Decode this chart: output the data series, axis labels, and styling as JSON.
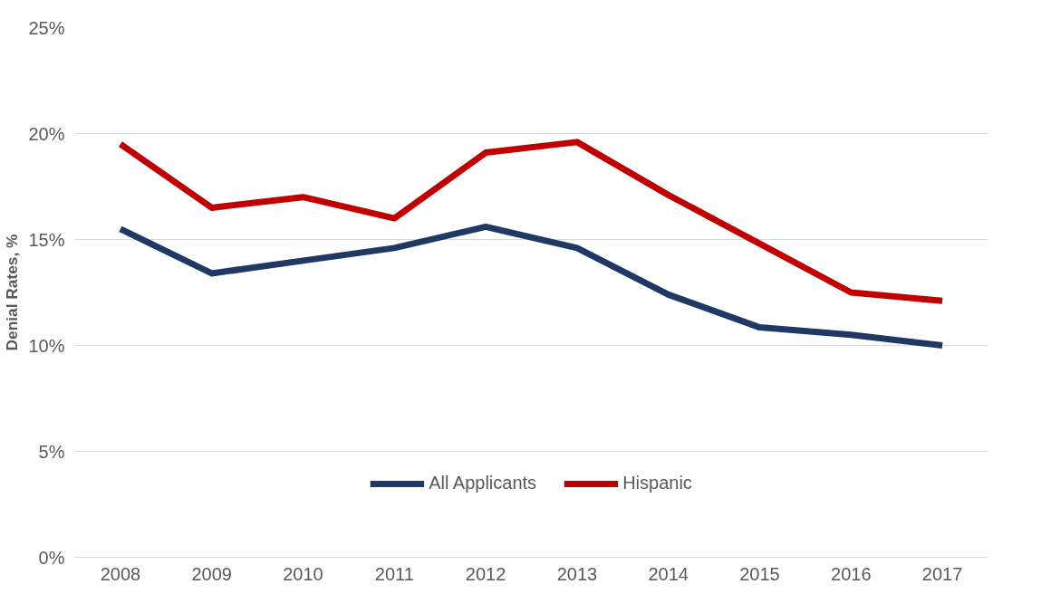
{
  "chart_data": {
    "type": "line",
    "ylabel": "Denial Rates, %",
    "categories": [
      "2008",
      "2009",
      "2010",
      "2011",
      "2012",
      "2013",
      "2014",
      "2015",
      "2016",
      "2017"
    ],
    "series": [
      {
        "name": "All Applicants",
        "color": "#1f3864",
        "values": [
          15.5,
          13.4,
          14.0,
          14.6,
          15.6,
          14.6,
          12.4,
          10.85,
          10.5,
          10.0
        ]
      },
      {
        "name": "Hispanic",
        "color": "#c00000",
        "values": [
          19.5,
          16.5,
          17.0,
          16.0,
          19.1,
          19.6,
          17.1,
          14.8,
          12.5,
          12.1
        ]
      }
    ],
    "ylim": [
      0,
      25
    ],
    "yticks": [
      {
        "value": 0,
        "label": "0%"
      },
      {
        "value": 5,
        "label": "5%"
      },
      {
        "value": 10,
        "label": "10%"
      },
      {
        "value": 15,
        "label": "15%"
      },
      {
        "value": 20,
        "label": "20%"
      },
      {
        "value": 25,
        "label": "25%"
      }
    ],
    "grid": "y",
    "legend": "bottom",
    "marker": "none",
    "line_style": "solid"
  }
}
